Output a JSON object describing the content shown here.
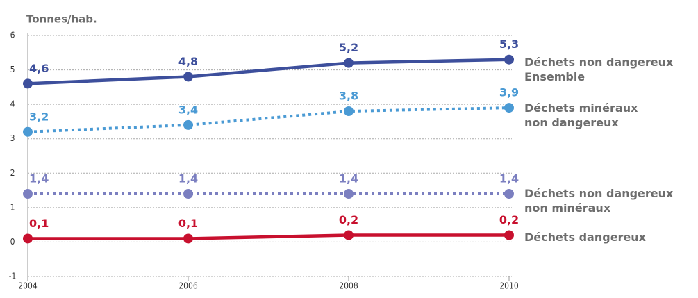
{
  "chart_data": {
    "type": "line",
    "y_label": "Tonnes/hab.",
    "x": [
      2004,
      2006,
      2008,
      2010
    ],
    "xlim": [
      2004,
      2010
    ],
    "xticks": [
      2004,
      2006,
      2008,
      2010
    ],
    "ylim": [
      -1,
      6
    ],
    "yticks": [
      -1,
      0,
      1,
      2,
      3,
      4,
      5,
      6
    ],
    "grid": true,
    "series": [
      {
        "name": "Déchets non dangereux\nEnsemble",
        "color": "#3d4f9c",
        "style": "solid",
        "values": [
          4.6,
          4.8,
          5.2,
          5.3
        ],
        "value_labels": [
          "4,6",
          "4,8",
          "5,2",
          "5,3"
        ]
      },
      {
        "name": "Déchets minéraux\nnon dangereux",
        "color": "#4a9ad4",
        "style": "dotted",
        "values": [
          3.2,
          3.4,
          3.8,
          3.9
        ],
        "value_labels": [
          "3,2",
          "3,4",
          "3,8",
          "3,9"
        ]
      },
      {
        "name": "Déchets non dangereux\nnon minéraux",
        "color": "#7b7fc0",
        "style": "dotted",
        "values": [
          1.4,
          1.4,
          1.4,
          1.4
        ],
        "value_labels": [
          "1,4",
          "1,4",
          "1,4",
          "1,4"
        ]
      },
      {
        "name": "Déchets dangereux",
        "color": "#c8102e",
        "style": "solid",
        "values": [
          0.1,
          0.1,
          0.2,
          0.2
        ],
        "value_labels": [
          "0,1",
          "0,1",
          "0,2",
          "0,2"
        ]
      }
    ]
  }
}
